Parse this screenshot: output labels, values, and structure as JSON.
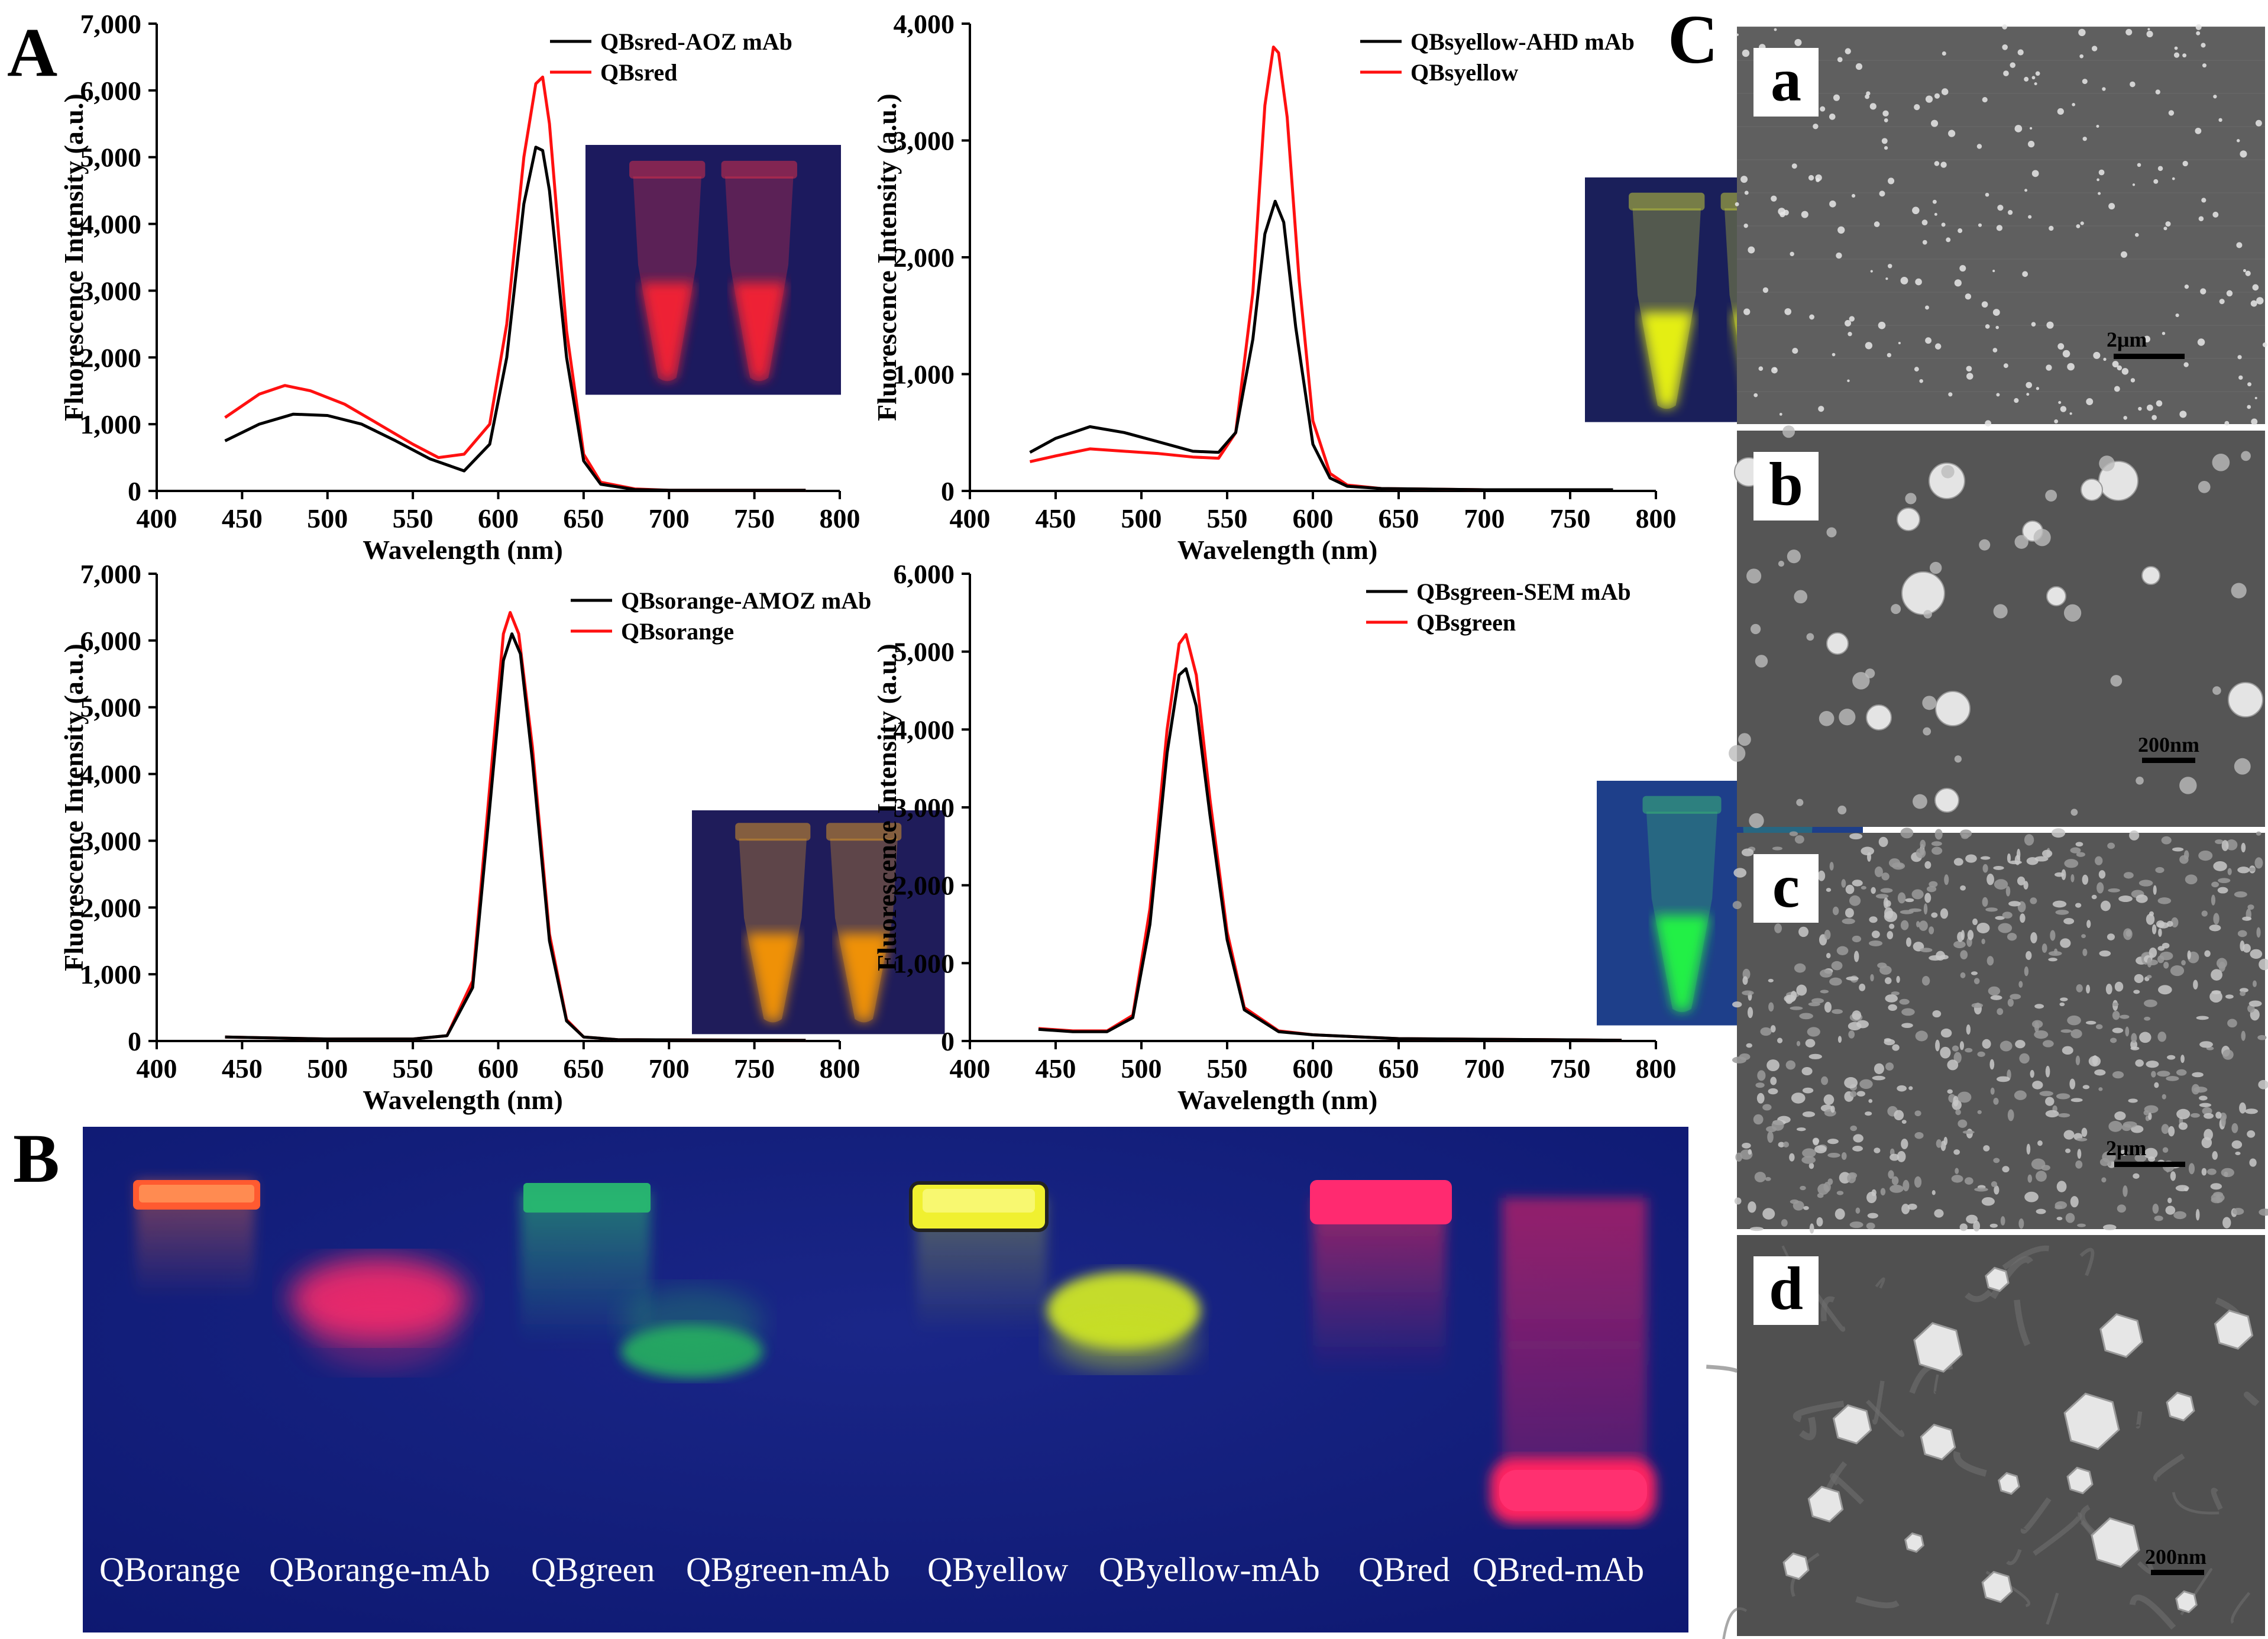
{
  "panels": {
    "A": "A",
    "B": "B",
    "C": "C"
  },
  "colors": {
    "complex": "#000000",
    "free": "#ff1010"
  },
  "spectra": [
    {
      "id": "red",
      "ylabel": "Fluorescence Intensity (a.u.)",
      "xlabel": "Wavelength (nm)",
      "xlim": [
        400,
        800
      ],
      "ylim": [
        0,
        7000
      ],
      "xticks": [
        "400",
        "450",
        "500",
        "550",
        "600",
        "650",
        "700",
        "750",
        "800"
      ],
      "yticks": [
        "0",
        "1,000",
        "2,000",
        "3,000",
        "4,000",
        "5,000",
        "6,000",
        "7,000"
      ],
      "legend": [
        "QBsred-AOZ mAb",
        "QBsred"
      ],
      "inset": {
        "tube_color": "#ff3344",
        "glow": "#ff2030",
        "bg": "#1c1a5e"
      }
    },
    {
      "id": "yellow",
      "ylabel": "Fluorescence Intensity (a.u.)",
      "xlabel": "Wavelength (nm)",
      "xlim": [
        400,
        800
      ],
      "ylim": [
        0,
        4000
      ],
      "xticks": [
        "400",
        "450",
        "500",
        "550",
        "600",
        "650",
        "700",
        "750",
        "800"
      ],
      "yticks": [
        "0",
        "1,000",
        "2,000",
        "3,000",
        "4,000"
      ],
      "legend": [
        "QBsyellow-AHD mAb",
        "QBsyellow"
      ],
      "inset": {
        "tube_color": "#e8f030",
        "glow": "#f4ff10",
        "bg": "#1a1f5a"
      }
    },
    {
      "id": "orange",
      "ylabel": "Fluorescence Intensity (a.u.)",
      "xlabel": "Wavelength (nm)",
      "xlim": [
        400,
        800
      ],
      "ylim": [
        0,
        7000
      ],
      "xticks": [
        "400",
        "450",
        "500",
        "550",
        "600",
        "650",
        "700",
        "750",
        "800"
      ],
      "yticks": [
        "0",
        "1,000",
        "2,000",
        "3,000",
        "4,000",
        "5,000",
        "6,000",
        "7,000"
      ],
      "legend": [
        "QBsorange-AMOZ mAb",
        "QBsorange"
      ],
      "inset": {
        "tube_color": "#ffb020",
        "glow": "#ff9a00",
        "bg": "#1f1c5a"
      }
    },
    {
      "id": "green",
      "ylabel": "Fluorescence Intensity (a.u.)",
      "xlabel": "Wavelength (nm)",
      "xlim": [
        400,
        800
      ],
      "ylim": [
        0,
        6000
      ],
      "xticks": [
        "400",
        "450",
        "500",
        "550",
        "600",
        "650",
        "700",
        "750",
        "800"
      ],
      "yticks": [
        "0",
        "1,000",
        "2,000",
        "3,000",
        "4,000",
        "5,000",
        "6,000"
      ],
      "legend": [
        "QBsgreen-SEM mAb",
        "QBsgreen"
      ],
      "inset": {
        "tube_color": "#40d070",
        "glow": "#20ff40",
        "bg": "#1e3f8a"
      }
    }
  ],
  "chart_data": [
    {
      "type": "line",
      "title": "",
      "xlabel": "Wavelength (nm)",
      "ylabel": "Fluorescence Intensity (a.u.)",
      "xlim": [
        400,
        800
      ],
      "ylim": [
        0,
        7000
      ],
      "series": [
        {
          "name": "QBsred-AOZ mAb",
          "x": [
            440,
            460,
            480,
            500,
            520,
            540,
            560,
            580,
            595,
            605,
            615,
            622,
            626,
            630,
            640,
            650,
            660,
            680,
            700,
            780
          ],
          "y": [
            750,
            1000,
            1150,
            1130,
            1000,
            750,
            480,
            300,
            700,
            2000,
            4300,
            5150,
            5100,
            4500,
            2000,
            450,
            100,
            20,
            10,
            10
          ]
        },
        {
          "name": "QBsred",
          "x": [
            440,
            460,
            475,
            490,
            510,
            530,
            550,
            565,
            580,
            595,
            605,
            615,
            622,
            626,
            630,
            640,
            650,
            660,
            680,
            700,
            780
          ],
          "y": [
            1100,
            1450,
            1580,
            1500,
            1300,
            1000,
            700,
            500,
            550,
            1000,
            2500,
            5000,
            6100,
            6200,
            5500,
            2400,
            550,
            130,
            30,
            10,
            10
          ]
        }
      ]
    },
    {
      "type": "line",
      "title": "",
      "xlabel": "Wavelength (nm)",
      "ylabel": "Fluorescence Intensity (a.u.)",
      "xlim": [
        400,
        800
      ],
      "ylim": [
        0,
        4000
      ],
      "series": [
        {
          "name": "QBsyellow-AHD mAb",
          "x": [
            435,
            450,
            470,
            490,
            510,
            530,
            545,
            555,
            565,
            572,
            578,
            583,
            590,
            600,
            610,
            620,
            640,
            700,
            775
          ],
          "y": [
            330,
            450,
            550,
            500,
            420,
            340,
            330,
            500,
            1300,
            2200,
            2480,
            2300,
            1400,
            400,
            110,
            40,
            20,
            10,
            10
          ]
        },
        {
          "name": "QBsyellow",
          "x": [
            435,
            450,
            470,
            490,
            510,
            530,
            545,
            555,
            565,
            572,
            577,
            580,
            585,
            592,
            600,
            610,
            620,
            640,
            700,
            775
          ],
          "y": [
            250,
            300,
            360,
            340,
            320,
            290,
            280,
            500,
            1700,
            3300,
            3800,
            3750,
            3200,
            1800,
            600,
            150,
            50,
            20,
            10,
            10
          ]
        }
      ]
    },
    {
      "type": "line",
      "title": "",
      "xlabel": "Wavelength (nm)",
      "ylabel": "Fluorescence Intensity (a.u.)",
      "xlim": [
        400,
        800
      ],
      "ylim": [
        0,
        7000
      ],
      "series": [
        {
          "name": "QBsorange-AMOZ mAb",
          "x": [
            440,
            500,
            550,
            570,
            585,
            595,
            603,
            608,
            613,
            620,
            630,
            640,
            650,
            670,
            780
          ],
          "y": [
            60,
            30,
            30,
            80,
            800,
            3500,
            5700,
            6100,
            5800,
            4200,
            1500,
            300,
            60,
            20,
            10
          ]
        },
        {
          "name": "QBsorange",
          "x": [
            440,
            500,
            550,
            570,
            585,
            595,
            603,
            607,
            612,
            620,
            630,
            640,
            650,
            670,
            780
          ],
          "y": [
            60,
            30,
            30,
            80,
            900,
            3800,
            6100,
            6420,
            6100,
            4400,
            1600,
            320,
            60,
            20,
            10
          ]
        }
      ]
    },
    {
      "type": "line",
      "title": "",
      "xlabel": "Wavelength (nm)",
      "ylabel": "Fluorescence Intensity (a.u.)",
      "xlim": [
        400,
        800
      ],
      "ylim": [
        0,
        6000
      ],
      "series": [
        {
          "name": "QBsgreen-SEM mAb",
          "x": [
            440,
            460,
            480,
            495,
            505,
            515,
            522,
            526,
            532,
            540,
            550,
            560,
            580,
            600,
            650,
            780
          ],
          "y": [
            150,
            120,
            120,
            300,
            1500,
            3700,
            4700,
            4780,
            4300,
            2900,
            1300,
            400,
            120,
            80,
            30,
            10
          ]
        },
        {
          "name": "QBsgreen",
          "x": [
            440,
            460,
            480,
            495,
            505,
            515,
            522,
            526,
            532,
            540,
            550,
            560,
            580,
            600,
            650,
            780
          ],
          "y": [
            160,
            130,
            130,
            330,
            1700,
            4000,
            5100,
            5220,
            4700,
            3100,
            1400,
            430,
            130,
            80,
            30,
            10
          ]
        }
      ]
    }
  ],
  "gel": {
    "lanes": [
      "QBorange",
      "QBorange-mAb",
      "QBgreen",
      "QBgreen-mAb",
      "QByellow",
      "QByellow-mAb",
      "QBred",
      "QBred-mAb"
    ]
  },
  "sem": [
    {
      "letter": "a",
      "scale": "2μm"
    },
    {
      "letter": "b",
      "scale": "200nm"
    },
    {
      "letter": "c",
      "scale": "2μm"
    },
    {
      "letter": "d",
      "scale": "200nm"
    }
  ]
}
